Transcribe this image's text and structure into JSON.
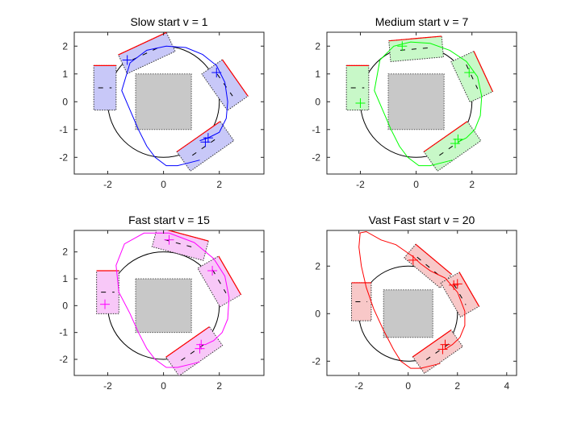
{
  "chart_data": [
    {
      "type": "line",
      "title": "Slow start v = 1",
      "xlim": [
        -3.2,
        3.6
      ],
      "ylim": [
        -2.6,
        2.5
      ],
      "xticks": [
        -2,
        0,
        2
      ],
      "xtick_labels": [
        "-2",
        "0",
        "2"
      ],
      "yticks": [
        -2,
        -1,
        0,
        1,
        2
      ],
      "ytick_labels": [
        "-2",
        "-1",
        "0",
        "1",
        "2"
      ],
      "color": "#0000ff",
      "fill": "#c8c8f8",
      "circle": {
        "center": [
          0,
          0
        ],
        "radius": 2
      },
      "obstacle": {
        "x": [
          -1,
          1
        ],
        "y": [
          -1,
          1
        ]
      },
      "trajectory": {
        "x": [
          1.3,
          0.9,
          0.5,
          0.1,
          -0.3,
          -0.6,
          -0.9,
          -1.2,
          -1.5,
          -1.2,
          -0.6,
          0.1,
          0.8,
          1.4,
          1.9,
          2.2,
          2.3,
          2.25,
          2.0,
          1.6,
          1.3
        ],
        "y": [
          -2.1,
          -2.2,
          -2.3,
          -2.3,
          -2.0,
          -1.6,
          -1.0,
          -0.3,
          0.4,
          1.4,
          1.85,
          2.0,
          1.95,
          1.7,
          1.3,
          0.7,
          0.0,
          -0.6,
          -1.1,
          -1.3,
          -1.4
        ]
      },
      "vehicles": [
        {
          "cx": -2.1,
          "cy": 0.5,
          "w": 0.8,
          "h": 1.6,
          "angle": 0
        },
        {
          "cx": -0.6,
          "cy": 1.75,
          "w": 1.9,
          "h": 0.75,
          "angle": 25
        },
        {
          "cx": 2.2,
          "cy": 0.6,
          "w": 1.6,
          "h": 0.9,
          "angle": -55
        },
        {
          "cx": 1.5,
          "cy": -1.6,
          "w": 1.9,
          "h": 0.85,
          "angle": 35
        }
      ],
      "markers": [
        {
          "x": -1.3,
          "y": 1.5
        },
        {
          "x": 1.9,
          "y": 1.05
        },
        {
          "x": 1.6,
          "y": -1.3
        },
        {
          "x": 1.5,
          "y": -1.45
        }
      ]
    },
    {
      "type": "line",
      "title": "Medium start v = 7",
      "xlim": [
        -3.2,
        3.6
      ],
      "ylim": [
        -2.6,
        2.5
      ],
      "xticks": [
        -2,
        0,
        2
      ],
      "xtick_labels": [
        "-2",
        "0",
        "2"
      ],
      "yticks": [
        -2,
        -1,
        0,
        1,
        2
      ],
      "ytick_labels": [
        "-2",
        "-1",
        "0",
        "1",
        "2"
      ],
      "color": "#00ff00",
      "fill": "#c8f8c8",
      "circle": {
        "center": [
          0,
          0
        ],
        "radius": 2
      },
      "obstacle": {
        "x": [
          -1,
          1
        ],
        "y": [
          -1,
          1
        ]
      },
      "trajectory": {
        "x": [
          1.3,
          0.9,
          0.5,
          0.1,
          -0.3,
          -0.6,
          -0.9,
          -1.2,
          -1.5,
          -1.3,
          -0.8,
          -0.2,
          0.5,
          1.2,
          1.8,
          2.2,
          2.35,
          2.3,
          2.1,
          1.8,
          1.5
        ],
        "y": [
          -2.1,
          -2.2,
          -2.3,
          -2.3,
          -2.0,
          -1.6,
          -1.0,
          -0.3,
          0.4,
          1.5,
          2.0,
          2.15,
          2.1,
          1.85,
          1.45,
          0.9,
          0.2,
          -0.5,
          -1.0,
          -1.3,
          -1.45
        ]
      },
      "vehicles": [
        {
          "cx": -2.1,
          "cy": 0.5,
          "w": 0.8,
          "h": 1.6,
          "angle": 0
        },
        {
          "cx": 0.0,
          "cy": 1.9,
          "w": 1.9,
          "h": 0.75,
          "angle": 5
        },
        {
          "cx": 2.0,
          "cy": 0.9,
          "w": 1.6,
          "h": 0.9,
          "angle": -65
        },
        {
          "cx": 1.3,
          "cy": -1.6,
          "w": 1.9,
          "h": 0.85,
          "angle": 35
        }
      ],
      "markers": [
        {
          "x": -2.0,
          "y": -0.05
        },
        {
          "x": -0.5,
          "y": 2.0
        },
        {
          "x": 1.9,
          "y": 1.05
        },
        {
          "x": 1.5,
          "y": -1.35
        },
        {
          "x": 1.4,
          "y": -1.5
        }
      ]
    },
    {
      "type": "line",
      "title": "Fast start v = 15",
      "xlim": [
        -3.2,
        3.6
      ],
      "ylim": [
        -2.6,
        2.8
      ],
      "xticks": [
        -2,
        0,
        2
      ],
      "xtick_labels": [
        "-2",
        "0",
        "2"
      ],
      "yticks": [
        -2,
        -1,
        0,
        1,
        2
      ],
      "ytick_labels": [
        "-2",
        "-1",
        "0",
        "1",
        "2"
      ],
      "color": "#ff00ff",
      "fill": "#f8c8f8",
      "circle": {
        "center": [
          0,
          0
        ],
        "radius": 2
      },
      "obstacle": {
        "x": [
          -1,
          1
        ],
        "y": [
          -1,
          1
        ]
      },
      "trajectory": {
        "x": [
          1.3,
          0.9,
          0.5,
          0.1,
          -0.3,
          -0.6,
          -0.9,
          -1.2,
          -1.6,
          -1.7,
          -1.4,
          -0.7,
          0.2,
          1.1,
          1.8,
          2.2,
          2.35,
          2.3,
          2.1,
          1.8,
          1.5
        ],
        "y": [
          -2.1,
          -2.2,
          -2.3,
          -2.3,
          -2.0,
          -1.6,
          -1.0,
          -0.3,
          0.5,
          1.5,
          2.3,
          2.7,
          2.7,
          2.35,
          1.75,
          1.1,
          0.3,
          -0.5,
          -1.0,
          -1.3,
          -1.45
        ]
      },
      "vehicles": [
        {
          "cx": -2.0,
          "cy": 0.5,
          "w": 0.8,
          "h": 1.6,
          "angle": 0
        },
        {
          "cx": 0.6,
          "cy": 2.3,
          "w": 1.9,
          "h": 0.75,
          "angle": -15
        },
        {
          "cx": 2.0,
          "cy": 0.9,
          "w": 1.6,
          "h": 0.9,
          "angle": -60
        },
        {
          "cx": 1.1,
          "cy": -1.7,
          "w": 1.9,
          "h": 0.85,
          "angle": 35
        }
      ],
      "markers": [
        {
          "x": -2.1,
          "y": 0.05
        },
        {
          "x": 0.2,
          "y": 2.45
        },
        {
          "x": 1.75,
          "y": 1.3
        },
        {
          "x": 1.35,
          "y": -1.45
        },
        {
          "x": 1.3,
          "y": -1.6
        }
      ]
    },
    {
      "type": "line",
      "title": "Vast Fast start v = 20",
      "xlim": [
        -3.3,
        4.4
      ],
      "ylim": [
        -2.6,
        3.5
      ],
      "xticks": [
        -2,
        0,
        2,
        4
      ],
      "xtick_labels": [
        "-2",
        "0",
        "2",
        "4"
      ],
      "yticks": [
        -2,
        0,
        2
      ],
      "ytick_labels": [
        "-2",
        "0",
        "2"
      ],
      "color": "#ff0000",
      "fill": "#f8c8c8",
      "circle": {
        "center": [
          0,
          0
        ],
        "radius": 2
      },
      "obstacle": {
        "x": [
          -1,
          1
        ],
        "y": [
          -1,
          1
        ]
      },
      "trajectory": {
        "x": [
          1.3,
          0.9,
          0.5,
          0.1,
          -0.3,
          -0.6,
          -1.0,
          -1.4,
          -1.7,
          -1.9,
          -2.0,
          -1.95,
          -1.7,
          -1.1,
          -0.5,
          0.2,
          0.5,
          0.9,
          1.5,
          2.0,
          2.3,
          2.3,
          2.1,
          1.8,
          1.5
        ],
        "y": [
          -2.1,
          -2.2,
          -2.3,
          -2.3,
          -2.0,
          -1.5,
          -0.7,
          0.2,
          1.1,
          2.0,
          2.8,
          3.4,
          3.45,
          3.1,
          2.9,
          2.4,
          2.1,
          1.8,
          1.5,
          0.9,
          0.1,
          -0.5,
          -1.0,
          -1.3,
          -1.5
        ]
      },
      "vehicles": [
        {
          "cx": -1.9,
          "cy": 0.5,
          "w": 0.8,
          "h": 1.6,
          "angle": 0
        },
        {
          "cx": 0.8,
          "cy": 2.0,
          "w": 1.9,
          "h": 0.75,
          "angle": -40
        },
        {
          "cx": 2.1,
          "cy": 0.8,
          "w": 1.6,
          "h": 0.9,
          "angle": -60
        },
        {
          "cx": 1.2,
          "cy": -1.6,
          "w": 1.9,
          "h": 0.85,
          "angle": 35
        }
      ],
      "markers": [
        {
          "x": 0.2,
          "y": 2.25
        },
        {
          "x": 1.85,
          "y": 1.2
        },
        {
          "x": 1.5,
          "y": -1.3
        },
        {
          "x": 1.4,
          "y": -1.5
        },
        {
          "x": 2.0,
          "y": 1.25
        }
      ]
    }
  ]
}
